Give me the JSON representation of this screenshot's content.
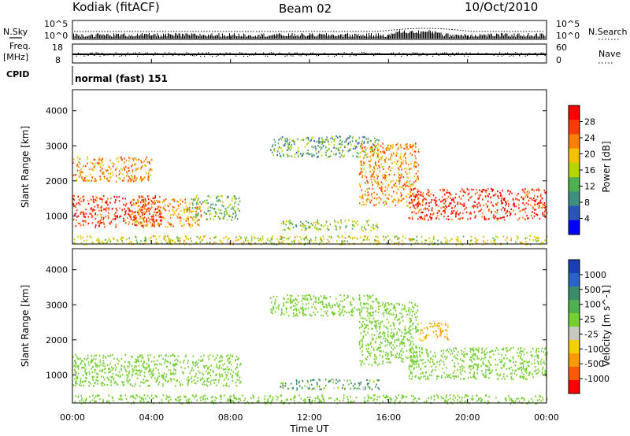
{
  "header": {
    "title": "Kodiak (fitACF)",
    "beam": "Beam 02",
    "date": "10/Oct/2010"
  },
  "top_panels": {
    "nsky": {
      "label": "N.Sky",
      "tick_top": "10^5",
      "tick_bottom": "10^0"
    },
    "nsearch": {
      "label": "N.Search",
      "tick_top": "10^5",
      "tick_bottom": "10^0"
    },
    "freq": {
      "label_line1": "Freq.",
      "label_line2": "[MHz]",
      "tick_top": "18",
      "tick_bottom": "8"
    },
    "nave": {
      "label": "Nave",
      "tick_top": "60",
      "tick_bottom": "0"
    },
    "cpid": {
      "label": "CPID",
      "value": "normal (fast) 151"
    }
  },
  "power_colorbar": {
    "label": "Power [dB]",
    "ticks": [
      "28",
      "24",
      "20",
      "16",
      "12",
      "8",
      "4"
    ],
    "colors": [
      "#ff0000",
      "#ff3c00",
      "#ff7f00",
      "#f5c200",
      "#b5d600",
      "#4fb04f",
      "#3f8f7f",
      "#2a55b8",
      "#0000ff"
    ]
  },
  "velocity_colorbar": {
    "label": "Velocity [m s^-1]",
    "ticks": [
      "1000",
      "500",
      "100",
      "25",
      "-25",
      "-100",
      "-500",
      "-1000"
    ],
    "colors": [
      "#1a3fb5",
      "#2a62c8",
      "#3b8a6c",
      "#4fb04f",
      "#74d030",
      "#c8c8be",
      "#f5d000",
      "#ff9a00",
      "#ff5a00",
      "#ff0000"
    ]
  },
  "x_axis": {
    "label": "Time UT",
    "ticks": [
      "00:00",
      "04:00",
      "08:00",
      "12:00",
      "16:00",
      "20:00",
      "00:00"
    ]
  },
  "y_axis": {
    "label": "Slant Range [km]",
    "ticks": [
      "4000",
      "3000",
      "2000",
      "1000"
    ]
  },
  "chart_data": [
    {
      "type": "heatmap",
      "panel": "power",
      "x_unit": "hours UT",
      "y_unit": "km",
      "xlim": [
        0,
        24
      ],
      "ylim": [
        200,
        4600
      ],
      "colorbar_range": [
        0,
        30
      ],
      "regions": [
        {
          "label": "ionospheric band",
          "t0": 0,
          "t1": 4.5,
          "r0": 700,
          "r1": 1600,
          "value": 28
        },
        {
          "label": "ionospheric band",
          "t0": 3,
          "t1": 6.5,
          "r0": 700,
          "r1": 1500,
          "value": 22
        },
        {
          "label": "band",
          "t0": 6,
          "t1": 8.5,
          "r0": 900,
          "r1": 1600,
          "value": 12
        },
        {
          "label": "upper patch",
          "t0": 0,
          "t1": 4,
          "r0": 2000,
          "r1": 2700,
          "value": 22
        },
        {
          "label": "far range",
          "t0": 10,
          "t1": 15.5,
          "r0": 2700,
          "r1": 3300,
          "value": 10
        },
        {
          "label": "slant",
          "t0": 14.5,
          "t1": 17.5,
          "r0": 1300,
          "r1": 3100,
          "value": 22
        },
        {
          "label": "ionospheric band",
          "t0": 17,
          "t1": 24,
          "r0": 900,
          "r1": 1800,
          "value": 28
        },
        {
          "label": "near range",
          "t0": 10.5,
          "t1": 15.5,
          "r0": 600,
          "r1": 900,
          "value": 14
        },
        {
          "label": "ground scatter",
          "t0": 0,
          "t1": 24,
          "r0": 200,
          "r1": 450,
          "value": 16
        }
      ]
    },
    {
      "type": "heatmap",
      "panel": "velocity",
      "x_unit": "hours UT",
      "y_unit": "km",
      "xlim": [
        0,
        24
      ],
      "ylim": [
        200,
        4600
      ],
      "colorbar_range": [
        -1000,
        1000
      ],
      "regions": [
        {
          "label": "ionospheric band",
          "t0": 0,
          "t1": 8.5,
          "r0": 700,
          "r1": 1600,
          "value": 0
        },
        {
          "label": "far range",
          "t0": 10,
          "t1": 15.5,
          "r0": 2700,
          "r1": 3300,
          "value": 0
        },
        {
          "label": "slant",
          "t0": 14.5,
          "t1": 17.5,
          "r0": 1300,
          "r1": 3100,
          "value": 0
        },
        {
          "label": "ionospheric band",
          "t0": 17,
          "t1": 24,
          "r0": 900,
          "r1": 1800,
          "value": 0
        },
        {
          "label": "upper patch",
          "t0": 17.5,
          "t1": 19,
          "r0": 2000,
          "r1": 2500,
          "value": -300
        },
        {
          "label": "near range",
          "t0": 10.5,
          "t1": 15.5,
          "r0": 600,
          "r1": 900,
          "value": 100
        },
        {
          "label": "ground scatter",
          "t0": 0,
          "t1": 24,
          "r0": 200,
          "r1": 450,
          "value": 0
        }
      ]
    }
  ]
}
